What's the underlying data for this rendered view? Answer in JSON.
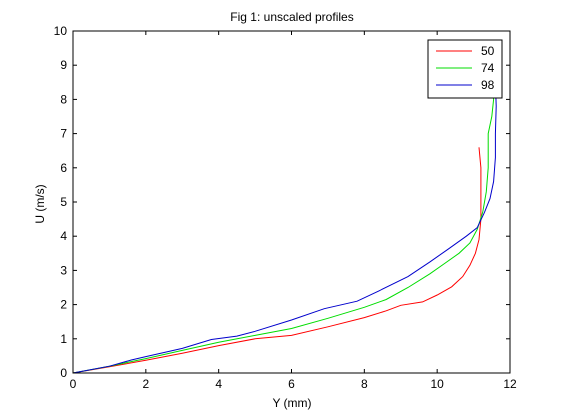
{
  "chart_data": {
    "type": "line",
    "title": "Fig 1: unscaled profiles",
    "xlabel": "Y (mm)",
    "ylabel": "U (m/s)",
    "xlim": [
      0,
      12
    ],
    "ylim": [
      0,
      10
    ],
    "xticks": [
      "0",
      "2",
      "4",
      "6",
      "8",
      "10",
      "12"
    ],
    "yticks": [
      "0",
      "1",
      "2",
      "3",
      "4",
      "5",
      "6",
      "7",
      "8",
      "9",
      "10"
    ],
    "grid": false,
    "legend_position": "top-right",
    "series": [
      {
        "name": "50",
        "color": "#ff0000",
        "x": [
          0,
          1.0,
          2.0,
          3.0,
          4.0,
          5.0,
          6.0,
          7.0,
          8.0,
          8.6,
          9.0,
          9.6,
          10.0,
          10.4,
          10.7,
          10.9,
          11.05,
          11.15,
          11.2,
          11.2,
          11.15
        ],
        "y": [
          0,
          0.18,
          0.37,
          0.58,
          0.8,
          1.0,
          1.1,
          1.35,
          1.62,
          1.82,
          1.98,
          2.08,
          2.28,
          2.52,
          2.82,
          3.15,
          3.5,
          3.9,
          4.5,
          6.0,
          6.6
        ]
      },
      {
        "name": "74",
        "color": "#00dd00",
        "x": [
          0,
          1.0,
          2.0,
          3.0,
          4.0,
          5.0,
          6.0,
          7.0,
          8.0,
          8.6,
          9.2,
          9.8,
          10.2,
          10.6,
          10.9,
          11.1,
          11.25,
          11.35,
          11.4,
          11.4,
          11.5,
          11.55,
          11.5
        ],
        "y": [
          0,
          0.2,
          0.42,
          0.66,
          0.9,
          1.1,
          1.3,
          1.6,
          1.92,
          2.15,
          2.5,
          2.9,
          3.2,
          3.5,
          3.8,
          4.2,
          4.7,
          5.3,
          6.0,
          7.0,
          7.5,
          8.0,
          8.3
        ]
      },
      {
        "name": "98",
        "color": "#0000cc",
        "x": [
          0,
          1.0,
          1.6,
          2.0,
          3.0,
          3.8,
          4.5,
          5.0,
          6.0,
          6.9,
          7.8,
          8.4,
          9.2,
          9.8,
          10.3,
          10.8,
          11.1,
          11.3,
          11.45,
          11.55,
          11.6,
          11.6,
          11.62,
          11.6
        ],
        "y": [
          0,
          0.2,
          0.38,
          0.48,
          0.72,
          0.98,
          1.08,
          1.22,
          1.55,
          1.88,
          2.1,
          2.4,
          2.82,
          3.25,
          3.62,
          4.0,
          4.25,
          4.7,
          5.1,
          5.6,
          6.3,
          7.0,
          7.8,
          8.5
        ]
      }
    ]
  }
}
